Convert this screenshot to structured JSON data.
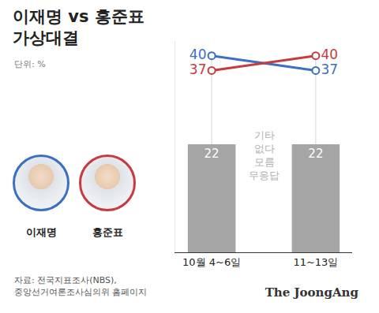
{
  "chart_data": {
    "type": "line",
    "title": "이재명 vs 홍준표\n가상대결",
    "subtitle": "단위: %",
    "source": "자료: 전국지표조사(NBS),\n중앙선거여론조사심의위 홈페이지",
    "credit": "The JoongAng",
    "categories": [
      "10월 4~6일",
      "11~13일"
    ],
    "series": [
      {
        "name": "이재명",
        "color": "#3b6fc1",
        "values": [
          40,
          37
        ],
        "type": "line",
        "marker": "circle"
      },
      {
        "name": "홍준표",
        "color": "#c73b3f",
        "values": [
          37,
          40
        ],
        "type": "line",
        "marker": "circle"
      },
      {
        "name": "기타\n없다\n모름\n무응답",
        "color": "#a5a5a5",
        "values": [
          22,
          22
        ],
        "type": "bar"
      }
    ],
    "ylim": [
      0,
      43
    ],
    "yticks": [],
    "data_labels": true,
    "tick_labels": "x",
    "grid": false,
    "legend": "none"
  }
}
